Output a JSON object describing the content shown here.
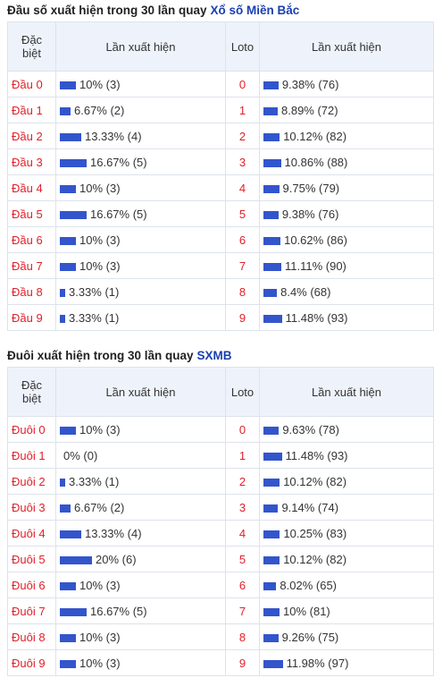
{
  "tables": [
    {
      "title": "Đầu số xuất hiện trong 30 lần quay",
      "title_link": "Xổ số Miền Bắc",
      "headers": [
        "Đặc biệt",
        "Lần xuất hiện",
        "Loto",
        "Lần xuất hiện"
      ],
      "rows": [
        {
          "label": "Đầu 0",
          "value": 10,
          "value_label": "10% (3)",
          "loto": "0",
          "loto_value": 9.38,
          "loto_value_label": "9.38% (76)"
        },
        {
          "label": "Đầu 1",
          "value": 6.67,
          "value_label": "6.67% (2)",
          "loto": "1",
          "loto_value": 8.89,
          "loto_value_label": "8.89% (72)"
        },
        {
          "label": "Đầu 2",
          "value": 13.33,
          "value_label": "13.33% (4)",
          "loto": "2",
          "loto_value": 10.12,
          "loto_value_label": "10.12% (82)"
        },
        {
          "label": "Đầu 3",
          "value": 16.67,
          "value_label": "16.67% (5)",
          "loto": "3",
          "loto_value": 10.86,
          "loto_value_label": "10.86% (88)"
        },
        {
          "label": "Đầu 4",
          "value": 10,
          "value_label": "10% (3)",
          "loto": "4",
          "loto_value": 9.75,
          "loto_value_label": "9.75% (79)"
        },
        {
          "label": "Đầu 5",
          "value": 16.67,
          "value_label": "16.67% (5)",
          "loto": "5",
          "loto_value": 9.38,
          "loto_value_label": "9.38% (76)"
        },
        {
          "label": "Đầu 6",
          "value": 10,
          "value_label": "10% (3)",
          "loto": "6",
          "loto_value": 10.62,
          "loto_value_label": "10.62% (86)"
        },
        {
          "label": "Đầu 7",
          "value": 10,
          "value_label": "10% (3)",
          "loto": "7",
          "loto_value": 11.11,
          "loto_value_label": "11.11% (90)"
        },
        {
          "label": "Đầu 8",
          "value": 3.33,
          "value_label": "3.33% (1)",
          "loto": "8",
          "loto_value": 8.4,
          "loto_value_label": "8.4% (68)"
        },
        {
          "label": "Đầu 9",
          "value": 3.33,
          "value_label": "3.33% (1)",
          "loto": "9",
          "loto_value": 11.48,
          "loto_value_label": "11.48% (93)"
        }
      ]
    },
    {
      "title": "Đuôi xuất hiện trong 30 lần quay",
      "title_link": "SXMB",
      "headers": [
        "Đặc biệt",
        "Lần xuất hiện",
        "Loto",
        "Lần xuất hiện"
      ],
      "rows": [
        {
          "label": "Đuôi 0",
          "value": 10,
          "value_label": "10% (3)",
          "loto": "0",
          "loto_value": 9.63,
          "loto_value_label": "9.63% (78)"
        },
        {
          "label": "Đuôi 1",
          "value": 0,
          "value_label": "0% (0)",
          "loto": "1",
          "loto_value": 11.48,
          "loto_value_label": "11.48% (93)"
        },
        {
          "label": "Đuôi 2",
          "value": 3.33,
          "value_label": "3.33% (1)",
          "loto": "2",
          "loto_value": 10.12,
          "loto_value_label": "10.12% (82)"
        },
        {
          "label": "Đuôi 3",
          "value": 6.67,
          "value_label": "6.67% (2)",
          "loto": "3",
          "loto_value": 9.14,
          "loto_value_label": "9.14% (74)"
        },
        {
          "label": "Đuôi 4",
          "value": 13.33,
          "value_label": "13.33% (4)",
          "loto": "4",
          "loto_value": 10.25,
          "loto_value_label": "10.25% (83)"
        },
        {
          "label": "Đuôi 5",
          "value": 20,
          "value_label": "20% (6)",
          "loto": "5",
          "loto_value": 10.12,
          "loto_value_label": "10.12% (82)"
        },
        {
          "label": "Đuôi 6",
          "value": 10,
          "value_label": "10% (3)",
          "loto": "6",
          "loto_value": 8.02,
          "loto_value_label": "8.02% (65)"
        },
        {
          "label": "Đuôi 7",
          "value": 16.67,
          "value_label": "16.67% (5)",
          "loto": "7",
          "loto_value": 10,
          "loto_value_label": "10% (81)"
        },
        {
          "label": "Đuôi 8",
          "value": 10,
          "value_label": "10% (3)",
          "loto": "8",
          "loto_value": 9.26,
          "loto_value_label": "9.26% (75)"
        },
        {
          "label": "Đuôi 9",
          "value": 10,
          "value_label": "10% (3)",
          "loto": "9",
          "loto_value": 11.98,
          "loto_value_label": "11.98% (97)"
        }
      ]
    }
  ]
}
